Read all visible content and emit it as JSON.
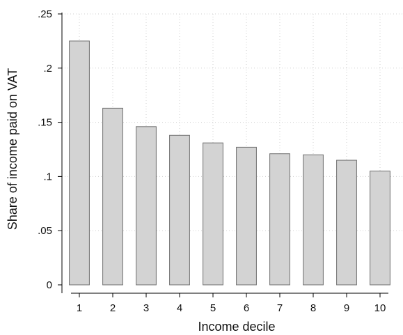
{
  "chart_data": {
    "type": "bar",
    "title": "",
    "xlabel": "Income decile",
    "ylabel": "Share of income paid on VAT",
    "categories": [
      "1",
      "2",
      "3",
      "4",
      "5",
      "6",
      "7",
      "8",
      "9",
      "10"
    ],
    "values": [
      0.225,
      0.163,
      0.146,
      0.138,
      0.131,
      0.127,
      0.121,
      0.12,
      0.115,
      0.105
    ],
    "ylim": [
      0,
      0.25
    ],
    "yticks": [
      {
        "value": 0,
        "label": "0"
      },
      {
        "value": 0.05,
        "label": ".05"
      },
      {
        "value": 0.1,
        "label": ".1"
      },
      {
        "value": 0.15,
        "label": ".15"
      },
      {
        "value": 0.2,
        "label": ".2"
      },
      {
        "value": 0.25,
        "label": ".25"
      }
    ],
    "grid": true,
    "legend": "none",
    "colors": {
      "bar_fill": "#d3d3d3",
      "bar_stroke": "#6f6f6f",
      "axis": "#000000",
      "grid": "#cfcfcf"
    }
  }
}
